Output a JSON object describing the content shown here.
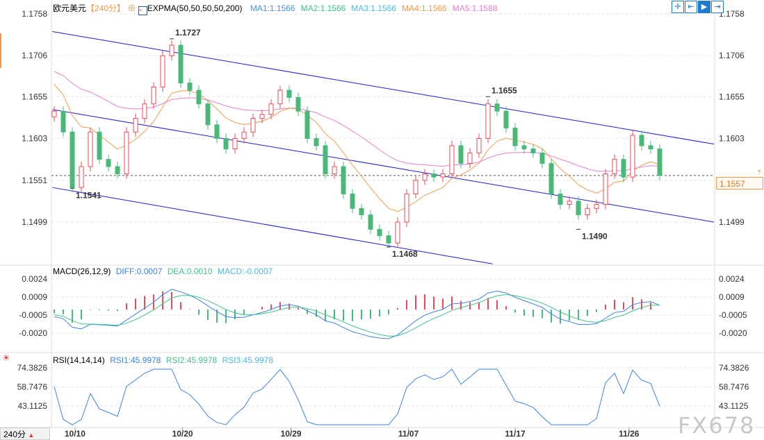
{
  "header": {
    "symbol": "欧元美元",
    "period": "【240分】",
    "indicator": "EXPMA(50,50,50,50,200)",
    "ma": [
      {
        "label": "MA1:1.1566",
        "color": "#4a90e2"
      },
      {
        "label": "MA2:1.1566",
        "color": "#3fc28a"
      },
      {
        "label": "MA3:1.1566",
        "color": "#4ab8e8"
      },
      {
        "label": "MA4:1.1566",
        "color": "#f39a4a"
      },
      {
        "label": "MA5:1.1588",
        "color": "#e57fd0"
      }
    ]
  },
  "toolbar": {
    "icons": [
      "crosshair-icon",
      "fit-start-icon",
      "play-icon",
      "fit-end-icon"
    ]
  },
  "macd_legend": {
    "title": "MACD(26,12,9)",
    "diff": "DIFF:0.0007",
    "dea": "DEA:0.0010",
    "macd": "MACD:-0.0007"
  },
  "rsi_legend": {
    "title": "RSI(14,14,14)",
    "rsi1": "RSI1:45.9978",
    "rsi2": "RSI2:45.9978",
    "rsi3": "RSI3:45.9978"
  },
  "period_button": "240分",
  "watermark": "FX678",
  "current_price": "1.1557",
  "colors": {
    "up": "#f04b55",
    "down": "#49b97a",
    "channel": "#1a1ad6",
    "ema_fast": "#f39a4a",
    "ema_slow": "#e57fd0",
    "diff": "#3b82e8",
    "dea": "#3fc28a",
    "price_tag": "#f39a4a"
  },
  "chart_data": {
    "type": "candlestick",
    "price_axis": {
      "ticks": [
        "1.1758",
        "1.1706",
        "1.1655",
        "1.1603",
        "1.1551",
        "1.1499"
      ],
      "range": [
        1.1499,
        1.1758
      ]
    },
    "macd_axis": {
      "ticks": [
        "0.0024",
        "0.0009",
        "-0.0005",
        "-0.0020"
      ]
    },
    "rsi_axis": {
      "ticks": [
        "74.3826",
        "58.7476",
        "43.1125"
      ]
    },
    "x_labels": [
      {
        "label": "10/10",
        "index": 2.3
      },
      {
        "label": "10/20",
        "index": 14.2
      },
      {
        "label": "10/29",
        "index": 26.2
      },
      {
        "label": "11/07",
        "index": 39.2
      },
      {
        "label": "11/17",
        "index": 51
      },
      {
        "label": "11/26",
        "index": 63.6
      }
    ],
    "first_open": 1.163,
    "close": [
      1.1637,
      1.1611,
      1.1542,
      1.1568,
      1.1611,
      1.1577,
      1.1568,
      1.1559,
      1.1611,
      1.1628,
      1.1646,
      1.1667,
      1.1706,
      1.1719,
      1.1672,
      1.1663,
      1.1646,
      1.162,
      1.1603,
      1.159,
      1.1603,
      1.1611,
      1.1628,
      1.1633,
      1.1646,
      1.1663,
      1.1654,
      1.1637,
      1.1603,
      1.1594,
      1.1559,
      1.1568,
      1.1534,
      1.1516,
      1.1508,
      1.149,
      1.1482,
      1.1473,
      1.1499,
      1.1534,
      1.1551,
      1.1559,
      1.1555,
      1.1559,
      1.1594,
      1.1572,
      1.1585,
      1.1603,
      1.1646,
      1.1637,
      1.1616,
      1.1594,
      1.159,
      1.1585,
      1.1572,
      1.1534,
      1.1521,
      1.1525,
      1.1508,
      1.1516,
      1.1521,
      1.1559,
      1.1577,
      1.1555,
      1.1607,
      1.1594,
      1.159,
      1.1557
    ],
    "annotations": [
      {
        "label": "1.1727",
        "index": 13,
        "price": 1.1727,
        "kind": "high"
      },
      {
        "label": "1.1541",
        "index": 2,
        "price": 1.1541,
        "kind": "low"
      },
      {
        "label": "1.1468",
        "index": 37,
        "price": 1.1468,
        "kind": "low"
      },
      {
        "label": "1.1655",
        "index": 48,
        "price": 1.1655,
        "kind": "high"
      },
      {
        "label": "1.1490",
        "index": 58,
        "price": 1.149,
        "kind": "low"
      }
    ],
    "channel_lines": [
      {
        "from": [
          -0.2,
          1.1736
        ],
        "to": [
          73,
          1.1596
        ]
      },
      {
        "from": [
          -0.2,
          1.1639
        ],
        "to": [
          73,
          1.1499
        ]
      },
      {
        "from": [
          -0.2,
          1.1542
        ],
        "to": [
          48.5,
          1.1447
        ]
      }
    ]
  }
}
